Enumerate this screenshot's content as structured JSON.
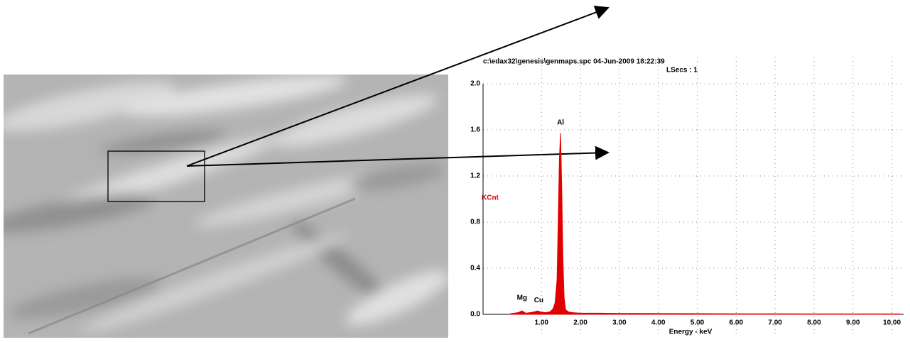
{
  "chart_data": {
    "type": "spectrum",
    "header": "c:\\edax32\\genesis\\genmaps.spc  04-Jun-2009 18:22:39",
    "subheader": "LSecs : 1",
    "y_label": "KCnt",
    "x_label": "Energy - keV",
    "color": "#e00000",
    "grid": true,
    "xlim": [
      -0.5,
      10.3
    ],
    "ylim": [
      0,
      2.0
    ],
    "xticks": [
      {
        "value": 1,
        "label": "1.00"
      },
      {
        "value": 2,
        "label": "2.00"
      },
      {
        "value": 3,
        "label": "3.00"
      },
      {
        "value": 4,
        "label": "4.00"
      },
      {
        "value": 5,
        "label": "5.00"
      },
      {
        "value": 6,
        "label": "6.00"
      },
      {
        "value": 7,
        "label": "7.00"
      },
      {
        "value": 8,
        "label": "8.00"
      },
      {
        "value": 9,
        "label": "9.00"
      },
      {
        "value": 10,
        "label": "10.00"
      }
    ],
    "yticks": [
      {
        "value": 0,
        "label": "0.0"
      },
      {
        "value": 0.4,
        "label": "0.4"
      },
      {
        "value": 0.8,
        "label": "0.8"
      },
      {
        "value": 1.2,
        "label": "1.2"
      },
      {
        "value": 1.6,
        "label": "1.6"
      },
      {
        "value": 2.0,
        "label": "2.0"
      }
    ],
    "x": [
      0.2,
      0.3,
      0.4,
      0.5,
      0.55,
      0.6,
      0.7,
      0.8,
      0.9,
      0.93,
      1.0,
      1.1,
      1.2,
      1.25,
      1.3,
      1.35,
      1.4,
      1.43,
      1.46,
      1.49,
      1.52,
      1.55,
      1.58,
      1.62,
      1.7,
      1.8,
      2.0,
      2.5,
      3.0,
      3.5,
      4.0,
      5.0,
      6.0,
      7.0,
      8.0,
      9.0,
      10.0,
      10.2
    ],
    "values": [
      0.005,
      0.01,
      0.015,
      0.03,
      0.02,
      0.01,
      0.015,
      0.02,
      0.03,
      0.025,
      0.02,
      0.015,
      0.02,
      0.03,
      0.05,
      0.1,
      0.3,
      0.8,
      1.35,
      1.57,
      1.1,
      0.5,
      0.15,
      0.04,
      0.02,
      0.015,
      0.01,
      0.01,
      0.008,
      0.008,
      0.007,
      0.006,
      0.005,
      0.005,
      0.004,
      0.004,
      0.004,
      0.004
    ],
    "annotations": [
      {
        "text": "Mg",
        "x": 0.5,
        "y": 0.08
      },
      {
        "text": "Cu",
        "x": 0.93,
        "y": 0.06
      },
      {
        "text": "Al",
        "x": 1.49,
        "y": 1.6
      }
    ]
  }
}
